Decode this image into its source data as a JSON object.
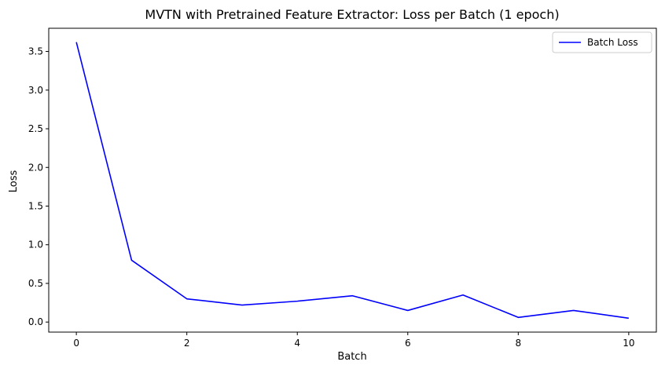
{
  "chart_data": {
    "type": "line",
    "title": "MVTN with Pretrained Feature Extractor: Loss per Batch (1 epoch)",
    "xlabel": "Batch",
    "ylabel": "Loss",
    "x": [
      0,
      1,
      2,
      3,
      4,
      5,
      6,
      7,
      8,
      9,
      10
    ],
    "series": [
      {
        "name": "Batch Loss",
        "color": "#0000ff",
        "values": [
          3.62,
          0.8,
          0.3,
          0.22,
          0.27,
          0.34,
          0.15,
          0.35,
          0.06,
          0.15,
          0.05
        ]
      }
    ],
    "xlim": [
      -0.5,
      10.5
    ],
    "ylim": [
      -0.13,
      3.8
    ],
    "xticks": [
      0,
      2,
      4,
      6,
      8,
      10
    ],
    "xtick_labels": [
      "0",
      "2",
      "4",
      "6",
      "8",
      "10"
    ],
    "yticks": [
      0.0,
      0.5,
      1.0,
      1.5,
      2.0,
      2.5,
      3.0,
      3.5
    ],
    "ytick_labels": [
      "0.0",
      "0.5",
      "1.0",
      "1.5",
      "2.0",
      "2.5",
      "3.0",
      "3.5"
    ],
    "grid": false,
    "legend": "top-right"
  }
}
